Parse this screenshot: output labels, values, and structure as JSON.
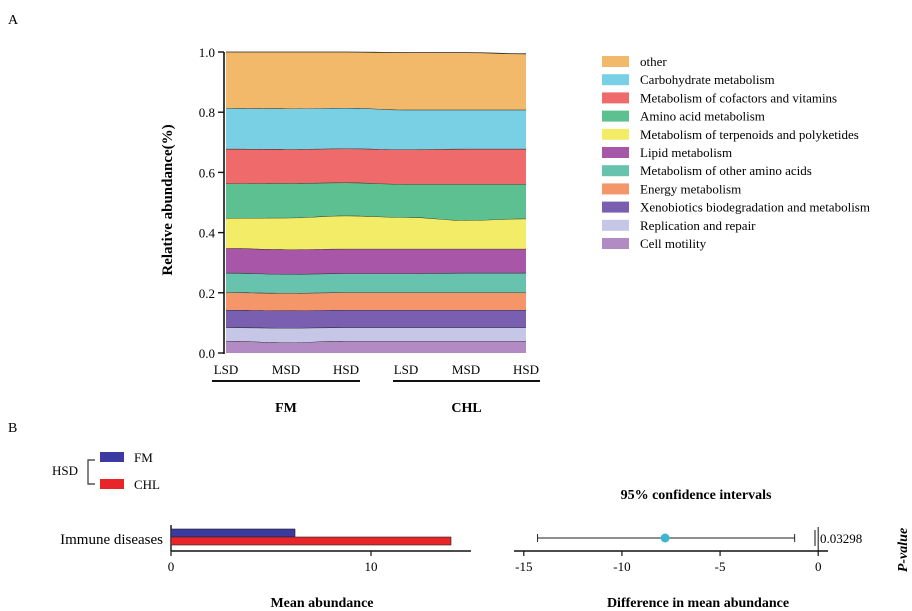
{
  "chart_data": [
    {
      "panel_label": "A",
      "type": "area",
      "stacked": true,
      "ylabel": "Relative abundance(%)",
      "ylim": [
        0,
        1.0
      ],
      "yticks": [
        "0.0",
        "0.2",
        "0.4",
        "0.6",
        "0.8",
        "1.0"
      ],
      "categories": [
        "LSD",
        "MSD",
        "HSD",
        "LSD",
        "MSD",
        "HSD"
      ],
      "groups": [
        {
          "name": "FM",
          "categories": [
            "LSD",
            "MSD",
            "HSD"
          ]
        },
        {
          "name": "CHL",
          "categories": [
            "LSD",
            "MSD",
            "HSD"
          ]
        }
      ],
      "legend_position": "right",
      "series": [
        {
          "name": "Cell motility",
          "color": "#b38bc4",
          "values": [
            0.04,
            0.035,
            0.04,
            0.04,
            0.04,
            0.04
          ]
        },
        {
          "name": "Replication and repair",
          "color": "#c6c6e6",
          "values": [
            0.045,
            0.048,
            0.045,
            0.045,
            0.045,
            0.045
          ]
        },
        {
          "name": "Xenobiotics biodegradation and metabolism",
          "color": "#7a5fb0",
          "values": [
            0.058,
            0.058,
            0.058,
            0.058,
            0.058,
            0.058
          ]
        },
        {
          "name": "Energy metabolism",
          "color": "#f4956a",
          "values": [
            0.058,
            0.058,
            0.058,
            0.058,
            0.058,
            0.058
          ]
        },
        {
          "name": "Metabolism of other amino acids",
          "color": "#67c2ae",
          "values": [
            0.065,
            0.063,
            0.063,
            0.063,
            0.065,
            0.065
          ]
        },
        {
          "name": "Lipid metabolism",
          "color": "#a857a8",
          "values": [
            0.082,
            0.082,
            0.082,
            0.082,
            0.08,
            0.08
          ]
        },
        {
          "name": "Metabolism of terpenoids and polyketides",
          "color": "#f3ec66",
          "values": [
            0.1,
            0.105,
            0.11,
            0.105,
            0.095,
            0.1
          ]
        },
        {
          "name": "Amino acid metabolism",
          "color": "#5cc091",
          "values": [
            0.115,
            0.115,
            0.11,
            0.11,
            0.12,
            0.115
          ]
        },
        {
          "name": "Metabolism of cofactors and vitamins",
          "color": "#ef6b6b",
          "values": [
            0.115,
            0.113,
            0.113,
            0.115,
            0.117,
            0.117
          ]
        },
        {
          "name": "Carbohydrate metabolism",
          "color": "#79d0e4",
          "values": [
            0.135,
            0.135,
            0.135,
            0.132,
            0.13,
            0.13
          ]
        },
        {
          "name": "other",
          "color": "#f2b96a",
          "values": [
            0.187,
            0.188,
            0.186,
            0.19,
            0.19,
            0.186
          ]
        }
      ],
      "legend_order": [
        "other",
        "Carbohydrate metabolism",
        "Metabolism of cofactors and vitamins",
        "Amino acid metabolism",
        "Metabolism of terpenoids and polyketides",
        "Lipid metabolism",
        "Metabolism of other amino acids",
        "Energy metabolism",
        "Xenobiotics biodegradation and metabolism",
        "Replication and repair",
        "Cell motility"
      ]
    },
    {
      "panel_label": "B",
      "type": "bar",
      "orientation": "horizontal",
      "group_label": "HSD",
      "categories": [
        "Immune diseases"
      ],
      "series": [
        {
          "name": "FM",
          "color": "#3a3aa0",
          "values": [
            6.2
          ]
        },
        {
          "name": "CHL",
          "color": "#e8262a",
          "values": [
            14.0
          ]
        }
      ],
      "xlabel": "Mean abundance",
      "xlim": [
        0,
        15
      ],
      "xticks": [
        "0",
        "10"
      ]
    },
    {
      "panel_label": "B",
      "type": "scatter",
      "title": "95% confidence intervals",
      "xlabel": "Difference in mean abundance",
      "xlim": [
        -15.5,
        0.5
      ],
      "xticks": [
        "-15",
        "-10",
        "-5",
        "0"
      ],
      "point": {
        "label": "Immune diseases",
        "estimate": -7.8,
        "ci_low": -14.3,
        "ci_high": -1.2,
        "color": "#3fb6cf"
      },
      "pvalue_label": "P-value",
      "pvalue": "0.03298"
    }
  ]
}
